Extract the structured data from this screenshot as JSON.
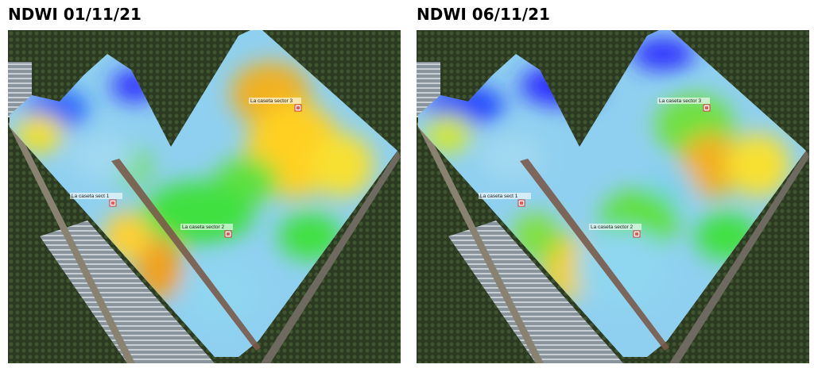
{
  "panels": [
    {
      "title": "NDWI 01/11/21",
      "markers": [
        {
          "label": "La caseta sector 3"
        },
        {
          "label": "La caseta sect 1"
        },
        {
          "label": "La caseta sector 2"
        }
      ]
    },
    {
      "title": "NDWI 06/11/21",
      "markers": [
        {
          "label": "La caseta sector 3"
        },
        {
          "label": "La caseta sect 1"
        },
        {
          "label": "La caseta sector 2"
        }
      ]
    }
  ]
}
